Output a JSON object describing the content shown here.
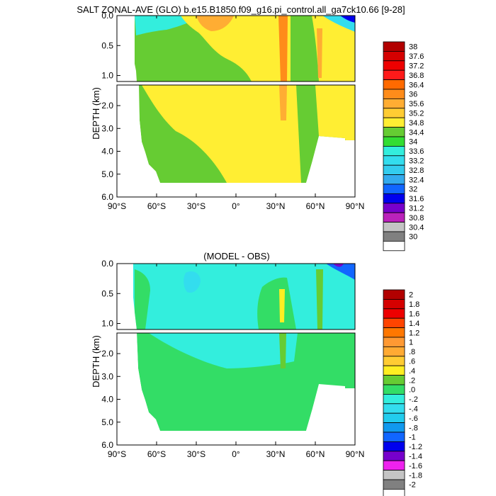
{
  "chart_data": [
    {
      "type": "heatmap",
      "title": "SALT ZONAL-AVE (GLO) b.e15.B1850.f09_g16.pi_control.all_ga7ck10.66 [9-28]",
      "ylabel": "DEPTH (km)",
      "xlabel": "",
      "xlim": [
        -90,
        90
      ],
      "ylim_upper": [
        0.0,
        1.1
      ],
      "ylim_lower": [
        1.1,
        6.0
      ],
      "x_ticks": [
        "90°S",
        "60°S",
        "30°S",
        "0°",
        "30°N",
        "60°N",
        "90°N"
      ],
      "y_ticks_upper": [
        "0.0",
        "0.5",
        "1.0"
      ],
      "y_ticks_lower": [
        "2.0",
        "3.0",
        "4.0",
        "5.0",
        "6.0"
      ],
      "colorbar_levels": [
        "38",
        "37.6",
        "37.2",
        "36.8",
        "36.4",
        "36",
        "35.6",
        "35.2",
        "34.8",
        "34.4",
        "34",
        "33.6",
        "33.2",
        "32.8",
        "32.4",
        "32",
        "31.6",
        "31.2",
        "30.8",
        "30.4",
        "30"
      ],
      "colorbar_colors": [
        "#b20000",
        "#d50000",
        "#ee0000",
        "#ff1a1a",
        "#ff6a00",
        "#ff8c1a",
        "#ffad33",
        "#ffcc33",
        "#ffee33",
        "#66cc33",
        "#33dd33",
        "#33eedd",
        "#33ddee",
        "#33ccee",
        "#33aaee",
        "#1166ff",
        "#0000ee",
        "#7700cc",
        "#bb22bb",
        "#c4c4c4",
        "#808080",
        "#ffffff"
      ]
    },
    {
      "type": "heatmap",
      "title": "(MODEL - OBS)",
      "ylabel": "DEPTH (km)",
      "xlabel": "",
      "xlim": [
        -90,
        90
      ],
      "ylim_upper": [
        0.0,
        1.1
      ],
      "ylim_lower": [
        1.1,
        6.0
      ],
      "x_ticks": [
        "90°S",
        "60°S",
        "30°S",
        "0°",
        "30°N",
        "60°N",
        "90°N"
      ],
      "y_ticks_upper": [
        "0.0",
        "0.5",
        "1.0"
      ],
      "y_ticks_lower": [
        "2.0",
        "3.0",
        "4.0",
        "5.0",
        "6.0"
      ],
      "colorbar_levels": [
        "2",
        "1.8",
        "1.6",
        "1.4",
        "1.2",
        "1",
        ".8",
        ".6",
        ".4",
        ".2",
        ".0",
        "-.2",
        "-.4",
        "-.6",
        "-.8",
        "-1",
        "-1.2",
        "-1.4",
        "-1.6",
        "-1.8",
        "-2"
      ],
      "colorbar_colors": [
        "#b20000",
        "#d50000",
        "#ee0000",
        "#ff4400",
        "#ff7700",
        "#ff9933",
        "#ffaa33",
        "#ffcc33",
        "#ffee22",
        "#66cc33",
        "#33dd66",
        "#33eedd",
        "#33ddee",
        "#22ccee",
        "#1199ee",
        "#1166ff",
        "#0000ee",
        "#7700cc",
        "#ee22ee",
        "#c4c4c4",
        "#808080",
        "#ffffff"
      ]
    }
  ]
}
